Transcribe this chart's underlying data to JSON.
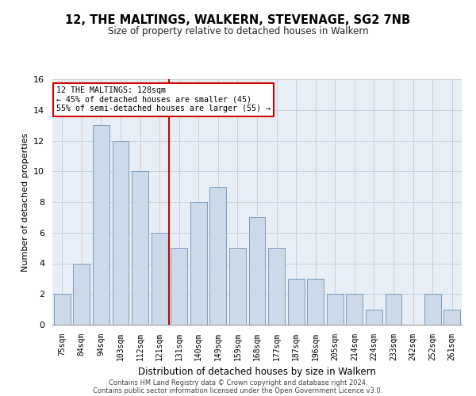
{
  "title": "12, THE MALTINGS, WALKERN, STEVENAGE, SG2 7NB",
  "subtitle": "Size of property relative to detached houses in Walkern",
  "xlabel": "Distribution of detached houses by size in Walkern",
  "ylabel": "Number of detached properties",
  "categories": [
    "75sqm",
    "84sqm",
    "94sqm",
    "103sqm",
    "112sqm",
    "121sqm",
    "131sqm",
    "140sqm",
    "149sqm",
    "159sqm",
    "168sqm",
    "177sqm",
    "187sqm",
    "196sqm",
    "205sqm",
    "214sqm",
    "224sqm",
    "233sqm",
    "242sqm",
    "252sqm",
    "261sqm"
  ],
  "values": [
    2,
    4,
    13,
    12,
    10,
    6,
    5,
    8,
    9,
    5,
    7,
    5,
    3,
    3,
    2,
    2,
    1,
    2,
    0,
    2,
    1
  ],
  "bar_color": "#ccd9e8",
  "bar_edge_color": "#7a9cbf",
  "vline_index": 6,
  "vline_color": "#cc0000",
  "ylim": [
    0,
    16
  ],
  "yticks": [
    0,
    2,
    4,
    6,
    8,
    10,
    12,
    14,
    16
  ],
  "annotation_line1": "12 THE MALTINGS: 128sqm",
  "annotation_line2": "← 45% of detached houses are smaller (45)",
  "annotation_line3": "55% of semi-detached houses are larger (55) →",
  "annotation_box_color": "#cc0000",
  "footer_line1": "Contains HM Land Registry data © Crown copyright and database right 2024.",
  "footer_line2": "Contains public sector information licensed under the Open Government Licence v3.0.",
  "background_color": "#e8eef5",
  "grid_color": "#c8d0dc"
}
